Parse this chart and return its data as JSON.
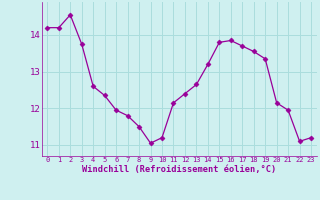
{
  "x": [
    0,
    1,
    2,
    3,
    4,
    5,
    6,
    7,
    8,
    9,
    10,
    11,
    12,
    13,
    14,
    15,
    16,
    17,
    18,
    19,
    20,
    21,
    22,
    23
  ],
  "y": [
    14.2,
    14.2,
    14.55,
    13.75,
    12.6,
    12.35,
    11.95,
    11.8,
    11.5,
    11.05,
    11.2,
    12.15,
    12.4,
    12.65,
    13.2,
    13.8,
    13.85,
    13.7,
    13.55,
    13.35,
    12.15,
    11.95,
    11.1,
    11.2
  ],
  "line_color": "#990099",
  "marker": "D",
  "marker_size": 2.5,
  "bg_color": "#cff0f0",
  "grid_color": "#aadddd",
  "xlabel": "Windchill (Refroidissement éolien,°C)",
  "xlabel_color": "#990099",
  "tick_color": "#990099",
  "ylim": [
    10.7,
    14.9
  ],
  "xlim": [
    -0.5,
    23.5
  ],
  "yticks": [
    11,
    12,
    13,
    14
  ],
  "xticks": [
    0,
    1,
    2,
    3,
    4,
    5,
    6,
    7,
    8,
    9,
    10,
    11,
    12,
    13,
    14,
    15,
    16,
    17,
    18,
    19,
    20,
    21,
    22,
    23
  ],
  "xtick_labels": [
    "0",
    "1",
    "2",
    "3",
    "4",
    "5",
    "6",
    "7",
    "8",
    "9",
    "10",
    "11",
    "12",
    "13",
    "14",
    "15",
    "16",
    "17",
    "18",
    "19",
    "20",
    "21",
    "22",
    "23"
  ]
}
